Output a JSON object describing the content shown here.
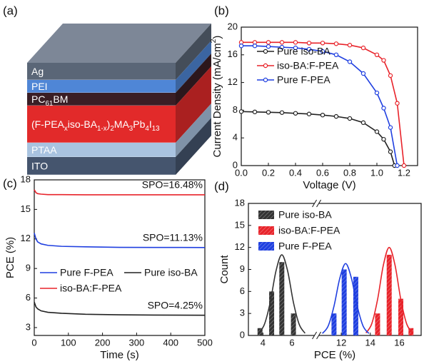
{
  "diagram": {
    "label": "(a)",
    "layers": [
      {
        "name": [
          "Ag"
        ],
        "color": "#5a6677"
      },
      {
        "name": [
          "PEI"
        ],
        "color": "#4f86d6"
      },
      {
        "name": [
          "PC",
          "61",
          "BM"
        ],
        "color": "#3a1e25"
      },
      {
        "name": [
          "(F-PEA",
          "x",
          "iso-BA",
          "1-x",
          ")",
          "2",
          "MA",
          "3",
          "Pb",
          "4",
          "I",
          "13"
        ],
        "color": "#e22a2a"
      },
      {
        "name": [
          "PTAA"
        ],
        "color": "#a9c3e0"
      },
      {
        "name": [
          "ITO"
        ],
        "color": "#45556e"
      }
    ]
  },
  "chart_data": [
    {
      "type": "line",
      "label": "(b)",
      "xlabel": [
        "Voltage (V)"
      ],
      "ylabel": [
        "Current Density (mA/cm",
        "2",
        ")"
      ],
      "xlim": [
        0,
        1.3
      ],
      "xticks": [
        {
          "value": 0,
          "label": "0.0"
        },
        0.2,
        0.4,
        0.6,
        0.8,
        {
          "value": 1,
          "label": "1.0"
        },
        1.2
      ],
      "ylim": [
        0,
        20
      ],
      "yticks": [
        0,
        4,
        8,
        12,
        16,
        20
      ],
      "markers": true,
      "legend": "upper left",
      "series": [
        {
          "name": "Pure iso-BA",
          "color": "#222222",
          "x": [
            0,
            0.1,
            0.2,
            0.3,
            0.4,
            0.5,
            0.6,
            0.7,
            0.8,
            0.9,
            1.0,
            1.05,
            1.1,
            1.13
          ],
          "values": [
            7.8,
            7.75,
            7.7,
            7.65,
            7.55,
            7.45,
            7.3,
            7.1,
            6.8,
            6.2,
            4.9,
            3.8,
            2.0,
            0
          ]
        },
        {
          "name": "iso-BA:F-PEA",
          "color": "#e8232a",
          "x": [
            0,
            0.1,
            0.2,
            0.3,
            0.4,
            0.5,
            0.6,
            0.7,
            0.8,
            0.9,
            1.0,
            1.05,
            1.1,
            1.15,
            1.2
          ],
          "values": [
            17.8,
            17.8,
            17.8,
            17.8,
            17.8,
            17.7,
            17.7,
            17.6,
            17.4,
            17.0,
            16.0,
            15.2,
            13.0,
            9.0,
            0
          ]
        },
        {
          "name": "Pure F-PEA",
          "color": "#1f3fe0",
          "x": [
            0,
            0.1,
            0.2,
            0.3,
            0.4,
            0.5,
            0.6,
            0.7,
            0.8,
            0.9,
            1.0,
            1.05,
            1.1,
            1.15
          ],
          "values": [
            17.3,
            17.3,
            17.2,
            17.1,
            17.0,
            16.8,
            16.5,
            16.0,
            15.0,
            13.3,
            10.5,
            8.3,
            5.5,
            0
          ]
        }
      ]
    },
    {
      "type": "line",
      "label": "(c)",
      "xlabel": [
        "Time (s)"
      ],
      "ylabel": [
        "PCE (%)"
      ],
      "xlim": [
        0,
        500
      ],
      "xticks": [
        0,
        100,
        200,
        300,
        400,
        500
      ],
      "ylim": [
        2.2,
        18
      ],
      "yticks": [
        3,
        6,
        9,
        12,
        15,
        18
      ],
      "markers": false,
      "legend": "lower left",
      "series": [
        {
          "name": "Pure F-PEA",
          "color": "#1f3fe0",
          "x": [
            0,
            5,
            10,
            20,
            40,
            80,
            150,
            250,
            350,
            500
          ],
          "values": [
            12.6,
            12.0,
            11.7,
            11.5,
            11.35,
            11.25,
            11.2,
            11.15,
            11.14,
            11.13
          ],
          "annotation": "SPO=11.13%"
        },
        {
          "name": "Pure iso-BA",
          "color": "#222222",
          "x": [
            0,
            5,
            10,
            20,
            40,
            80,
            150,
            250,
            350,
            500
          ],
          "values": [
            5.6,
            5.1,
            4.9,
            4.7,
            4.55,
            4.45,
            4.35,
            4.3,
            4.27,
            4.25
          ],
          "annotation": "SPO=4.25%"
        },
        {
          "name": "iso-BA:F-PEA",
          "color": "#e8232a",
          "x": [
            0,
            5,
            10,
            20,
            40,
            80,
            150,
            250,
            350,
            500
          ],
          "values": [
            17.0,
            16.7,
            16.6,
            16.55,
            16.5,
            16.5,
            16.48,
            16.48,
            16.48,
            16.48
          ],
          "annotation": "SPO=16.48%"
        }
      ]
    },
    {
      "type": "bar",
      "label": "(d)",
      "xlabel": [
        "PCE (%)"
      ],
      "ylabel": [
        "Count"
      ],
      "xlim": [
        3,
        17.5
      ],
      "xbreak": [
        7.5,
        10.5
      ],
      "xticks": [
        4,
        6,
        12,
        14,
        16
      ],
      "ylim": [
        0,
        18
      ],
      "yticks": [
        0,
        3,
        6,
        9,
        12,
        15,
        18
      ],
      "legend": "upper left",
      "series": [
        {
          "name": "Pure iso-BA",
          "color": "#333333",
          "x": [
            3.8,
            4.6,
            5.3,
            6.1
          ],
          "values": [
            1,
            6,
            10,
            3
          ],
          "curve": {
            "x": [
              3.7,
              4.1,
              4.5,
              4.9,
              5.3,
              5.7,
              6.1,
              6.5,
              6.9
            ],
            "values": [
              0.3,
              1.5,
              4.5,
              8.8,
              11,
              8.8,
              4.5,
              1.5,
              0.3
            ]
          }
        },
        {
          "name": "iso-BA:F-PEA",
          "color": "#e8232a",
          "x": [
            14.5,
            15.3,
            16.1,
            16.8
          ],
          "values": [
            3,
            11,
            5,
            1
          ],
          "curve": {
            "x": [
              13.7,
              14.1,
              14.5,
              14.9,
              15.3,
              15.7,
              16.1,
              16.5,
              16.9
            ],
            "values": [
              0.34,
              1.6,
              4.9,
              9.6,
              12,
              9.6,
              4.9,
              1.6,
              0.34
            ]
          }
        },
        {
          "name": "Pure F-PEA",
          "color": "#1f3fe0",
          "x": [
            11.5,
            12.2,
            13.0
          ],
          "values": [
            3,
            9,
            8
          ],
          "curve": {
            "x": [
              10.7,
              11.1,
              11.5,
              11.9,
              12.3,
              12.7,
              13.1,
              13.5,
              13.9
            ],
            "values": [
              0.27,
              1.3,
              4.0,
              7.8,
              9.8,
              7.8,
              4.0,
              1.3,
              0.27
            ]
          }
        }
      ]
    }
  ]
}
